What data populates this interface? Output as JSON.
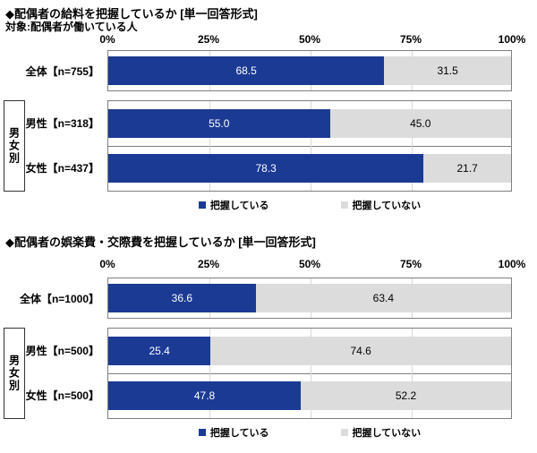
{
  "chart_data": [
    {
      "type": "bar",
      "orientation": "horizontal",
      "stacked": true,
      "unit": "%",
      "title": "◆配偶者の給料を把握しているか [単一回答形式]",
      "subtitle": "対象:配偶者が働いている人",
      "group_label": "男女別",
      "categories": [
        "全体【n=755】",
        "男性【n=318】",
        "女性【n=437】"
      ],
      "series": [
        {
          "name": "把握している",
          "color": "#1B3A94",
          "values": [
            68.5,
            55.0,
            78.3
          ],
          "labels": [
            "68.5",
            "55.0",
            "78.3"
          ]
        },
        {
          "name": "把握していない",
          "color": "#DCDCDC",
          "values": [
            31.5,
            45.0,
            21.7
          ],
          "labels": [
            "31.5",
            "45.0",
            "21.7"
          ]
        }
      ],
      "xlim": [
        0,
        100
      ],
      "ticks": [
        "0%",
        "25%",
        "50%",
        "75%",
        "100%"
      ],
      "grid": "vertical at 25/50/75",
      "legend_position": "bottom"
    },
    {
      "type": "bar",
      "orientation": "horizontal",
      "stacked": true,
      "unit": "%",
      "title": "◆配偶者の娯楽費・交際費を把握しているか [単一回答形式]",
      "subtitle": "",
      "group_label": "男女別",
      "categories": [
        "全体【n=1000】",
        "男性【n=500】",
        "女性【n=500】"
      ],
      "series": [
        {
          "name": "把握している",
          "color": "#1B3A94",
          "values": [
            36.6,
            25.4,
            47.8
          ],
          "labels": [
            "36.6",
            "25.4",
            "47.8"
          ]
        },
        {
          "name": "把握していない",
          "color": "#DCDCDC",
          "values": [
            63.4,
            74.6,
            52.2
          ],
          "labels": [
            "63.4",
            "74.6",
            "52.2"
          ]
        }
      ],
      "xlim": [
        0,
        100
      ],
      "ticks": [
        "0%",
        "25%",
        "50%",
        "75%",
        "100%"
      ],
      "grid": "vertical at 25/50/75",
      "legend_position": "bottom"
    }
  ]
}
